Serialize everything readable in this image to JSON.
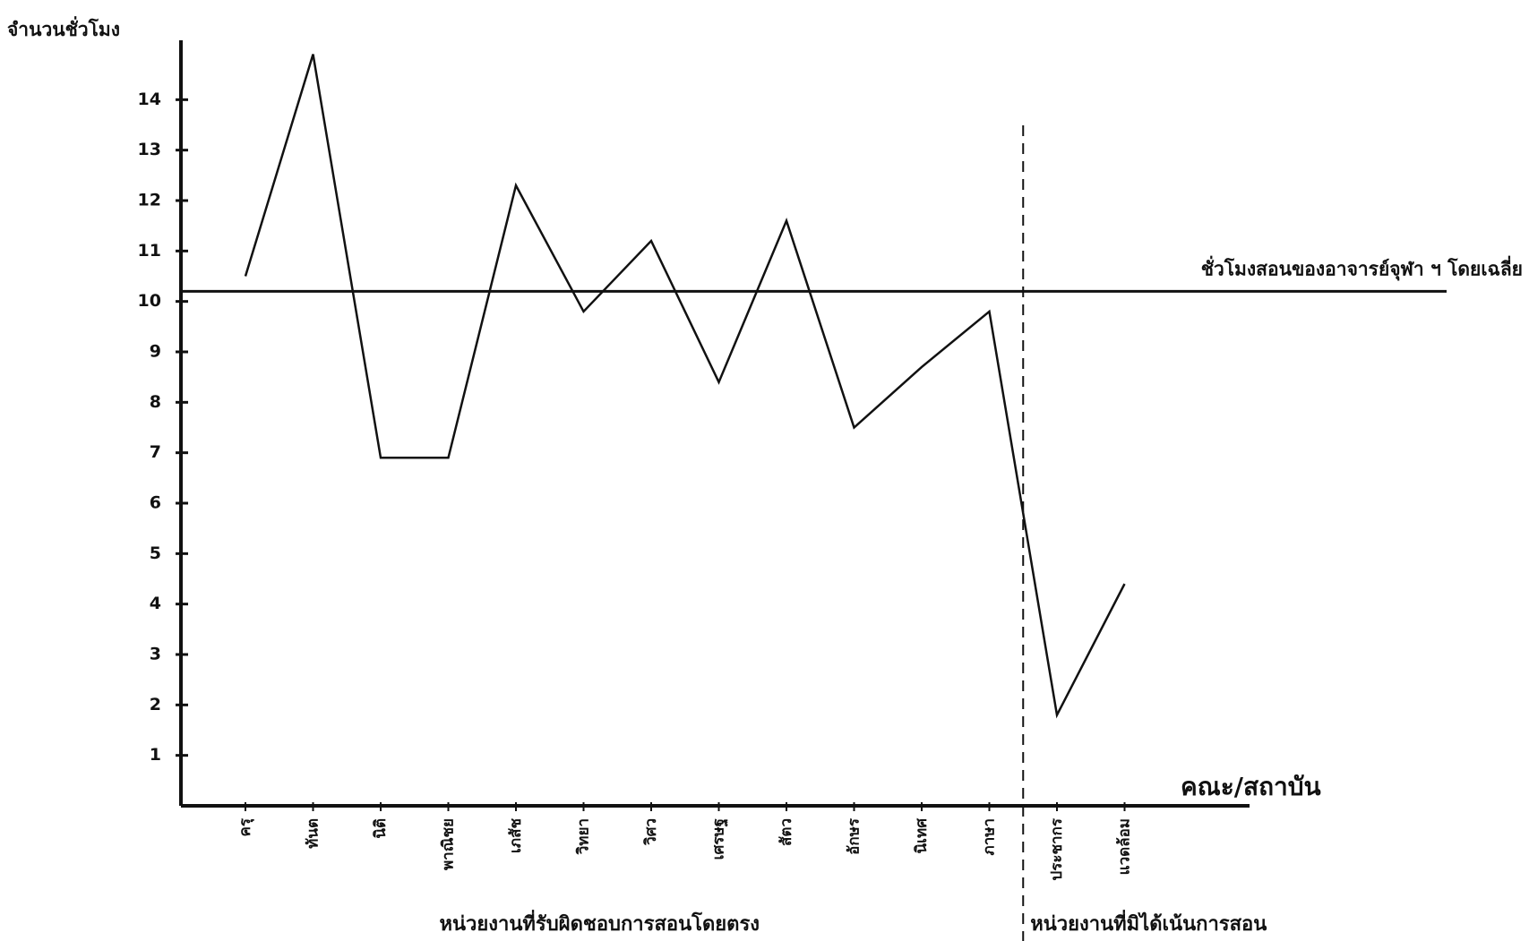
{
  "chart_data": {
    "type": "line",
    "y_label": "จำนวนชั่วโมง",
    "x_label": "คณะ/สถาบัน",
    "categories": [
      "ครุ",
      "ทันต",
      "นิติ",
      "พาณิชย",
      "เภสัช",
      "วิทยา",
      "วิศว",
      "เศรษฐ",
      "สัตว",
      "อักษร",
      "นิเทศ",
      "ภาษา",
      "ประชากร",
      "แวดล้อม"
    ],
    "series": [
      {
        "color": "#111111",
        "values": [
          10.5,
          14.9,
          6.9,
          6.9,
          12.3,
          9.8,
          11.2,
          8.4,
          11.6,
          7.5,
          8.7,
          9.8,
          1.8,
          4.4
        ]
      }
    ],
    "reference_line": {
      "value": 10.2,
      "label": "ชั่วโมงสอนของอาจารย์จุฬา ฯ โดยเฉลี่ย"
    },
    "groups": [
      {
        "label": "หน่วยงานที่รับผิดชอบการสอนโดยตรง",
        "count": 12
      },
      {
        "label": "หน่วยงานที่มิได้เน้นการสอน",
        "count": 2
      }
    ],
    "ylim": [
      0,
      15
    ],
    "yticks": [
      1,
      2,
      3,
      4,
      5,
      6,
      7,
      8,
      9,
      10,
      11,
      12,
      13,
      14
    ],
    "grid": false
  }
}
